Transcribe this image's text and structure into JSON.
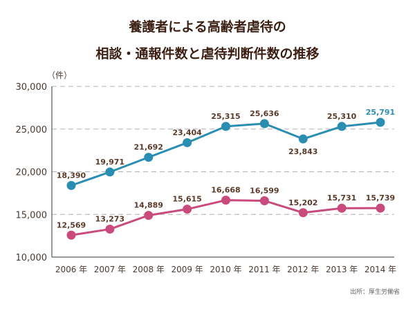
{
  "chart_data": {
    "type": "line",
    "title_line1": "養護者による高齢者虐待の",
    "title_line2": "相談・通報件数と虐待判断件数の推移",
    "unit_label": "（件）",
    "categories": [
      "2006 年",
      "2007 年",
      "2008 年",
      "2009 年",
      "2010 年",
      "2011 年",
      "2012 年",
      "2013 年",
      "2014 年"
    ],
    "ylim": [
      10000,
      30000
    ],
    "yticks": [
      10000,
      15000,
      20000,
      25000,
      30000
    ],
    "ytick_labels": [
      "10,000",
      "15,000",
      "20,000",
      "25,000",
      "30,000"
    ],
    "grid": true,
    "series": [
      {
        "color": "#2a8db2",
        "values": [
          18390,
          19971,
          21692,
          23404,
          25315,
          25636,
          23843,
          25310,
          25791
        ],
        "labels": [
          "18,390",
          "19,971",
          "21,692",
          "23,404",
          "25,315",
          "25,636",
          "23,843",
          "25,310",
          "25,791"
        ],
        "label_position": [
          "above",
          "above",
          "above",
          "above",
          "above",
          "above",
          "below",
          "above",
          "above"
        ],
        "last_label_color": "#2a8db2"
      },
      {
        "color": "#c94a7c",
        "values": [
          12569,
          13273,
          14889,
          15615,
          16668,
          16599,
          15202,
          15731,
          15739
        ],
        "labels": [
          "12,569",
          "13,273",
          "14,889",
          "15,615",
          "16,668",
          "16,599",
          "15,202",
          "15,731",
          "15,739"
        ],
        "label_position": [
          "above",
          "above",
          "above",
          "above",
          "above",
          "above",
          "above",
          "above",
          "above"
        ]
      }
    ],
    "source": "出所：厚生労働省",
    "colors": {
      "title": "#3b1f12",
      "label": "#5a3a28",
      "grid": "#b0b0b0",
      "axis": "#333333"
    }
  }
}
